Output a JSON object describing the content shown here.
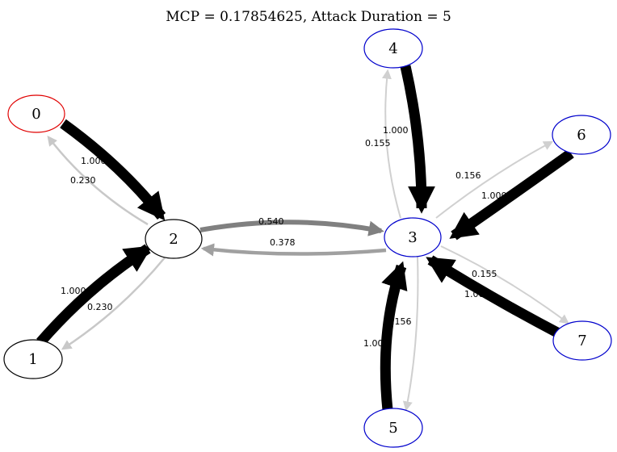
{
  "title": "MCP = 0.17854625, Attack Duration = 5",
  "colors": {
    "attacker": "#e00000",
    "target": "#0000cc",
    "neutral": "#000000",
    "edge_strong": "#000000",
    "edge_mid": "#808080",
    "edge_light": "#a0a0a0",
    "edge_faint": "#c8c8c8",
    "edge_faintest": "#d0d0d0"
  },
  "nodes": [
    {
      "id": "n0",
      "label": "0",
      "role": "attacker"
    },
    {
      "id": "n1",
      "label": "1",
      "role": "neutral"
    },
    {
      "id": "n2",
      "label": "2",
      "role": "neutral"
    },
    {
      "id": "n3",
      "label": "3",
      "role": "target"
    },
    {
      "id": "n4",
      "label": "4",
      "role": "target"
    },
    {
      "id": "n5",
      "label": "5",
      "role": "target"
    },
    {
      "id": "n6",
      "label": "6",
      "role": "target"
    },
    {
      "id": "n7",
      "label": "7",
      "role": "target"
    }
  ],
  "edges": [
    {
      "from": "0",
      "to": "2",
      "label": "1.000"
    },
    {
      "from": "2",
      "to": "0",
      "label": "0.230"
    },
    {
      "from": "1",
      "to": "2",
      "label": "1.000"
    },
    {
      "from": "2",
      "to": "1",
      "label": "0.230"
    },
    {
      "from": "2",
      "to": "3",
      "label": "0.540"
    },
    {
      "from": "3",
      "to": "2",
      "label": "0.378"
    },
    {
      "from": "4",
      "to": "3",
      "label": "1.000"
    },
    {
      "from": "3",
      "to": "4",
      "label": "0.155"
    },
    {
      "from": "6",
      "to": "3",
      "label": "1.000"
    },
    {
      "from": "3",
      "to": "6",
      "label": "0.156"
    },
    {
      "from": "7",
      "to": "3",
      "label": "1.000"
    },
    {
      "from": "3",
      "to": "7",
      "label": "0.155"
    },
    {
      "from": "5",
      "to": "3",
      "label": "1.000"
    },
    {
      "from": "3",
      "to": "5",
      "label": "0.156"
    }
  ]
}
